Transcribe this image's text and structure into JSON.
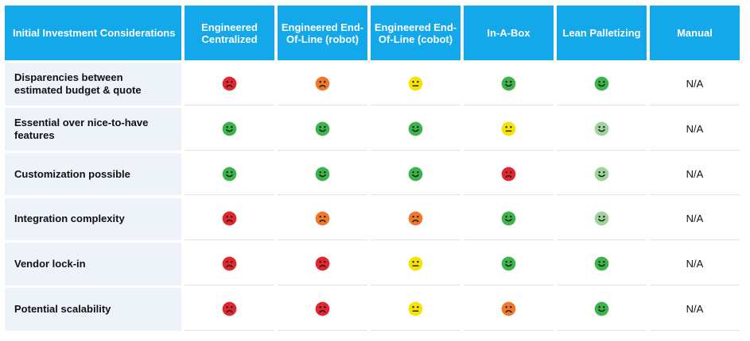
{
  "table": {
    "headers": [
      "Initial Investment Considerations",
      "Engineered Centralized",
      "Engineered End-Of-Line (robot)",
      "Engineered End-Of-Line (cobot)",
      "In-A-Box",
      "Lean Palletizing",
      "Manual"
    ],
    "rows": [
      {
        "label": "Disparencies between estimated budget & quote",
        "ratings": [
          "sad-red",
          "sad-orange",
          "neutral-yellow",
          "happy-green",
          "happy-green",
          "N/A"
        ]
      },
      {
        "label": "Essential over nice-to-have features",
        "ratings": [
          "happy-green",
          "happy-green",
          "happy-green",
          "neutral-yellow",
          "happy-lightgreen",
          "N/A"
        ]
      },
      {
        "label": "Customization possible",
        "ratings": [
          "happy-green",
          "happy-green",
          "happy-green",
          "sad-red",
          "happy-lightgreen",
          "N/A"
        ]
      },
      {
        "label": "Integration complexity",
        "ratings": [
          "sad-red",
          "sad-orange",
          "sad-orange",
          "happy-green",
          "happy-lightgreen",
          "N/A"
        ]
      },
      {
        "label": "Vendor lock-in",
        "ratings": [
          "sad-red",
          "sad-red",
          "neutral-yellow",
          "happy-green",
          "happy-green",
          "N/A"
        ]
      },
      {
        "label": "Potential scalability",
        "ratings": [
          "sad-red",
          "sad-red",
          "neutral-yellow",
          "sad-orange",
          "happy-green",
          "N/A"
        ]
      }
    ]
  },
  "colors": {
    "header_bg": "#12a8ea",
    "label_bg": "#eef3f9",
    "red": "#e0262e",
    "orange": "#f0782d",
    "yellow": "#f7e300",
    "green": "#3cb44b",
    "lightgreen": "#9fd39b"
  }
}
